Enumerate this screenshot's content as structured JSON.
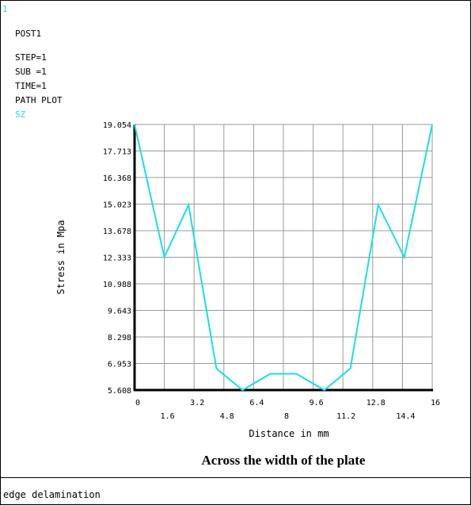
{
  "window_number": "1",
  "header": {
    "program": "POST1",
    "step": "STEP=1",
    "sub": "SUB =1",
    "time": "TIME=1",
    "plot_type": "PATH PLOT",
    "item": "SZ"
  },
  "caption": "Across the width of the plate",
  "footer_text": "edge delamination",
  "colors": {
    "curve": "#18e0e4",
    "grid": "#9a9a9a",
    "axis": "#000000",
    "text": "#000000"
  },
  "chart_data": {
    "type": "line",
    "xlabel": "Distance in mm",
    "ylabel": "Stress in Mpa",
    "xlim": [
      0,
      16
    ],
    "ylim": [
      5.608,
      19.054
    ],
    "x_ticks_upper": [
      "0",
      "3.2",
      "6.4",
      "9.6",
      "12.8",
      "16"
    ],
    "x_ticks_lower": [
      "1.6",
      "4.8",
      "8",
      "11.2",
      "14.4"
    ],
    "y_ticks": [
      "19.054",
      "17.713",
      "16.368",
      "15.023",
      "13.678",
      "12.333",
      "10.988",
      "9.643",
      "8.298",
      "6.953",
      "5.608"
    ],
    "grid": true,
    "series": [
      {
        "x": [
          0,
          1.6,
          2.9,
          4.4,
          5.8,
          7.3,
          8.7,
          10.2,
          11.6,
          13.1,
          14.5,
          16
        ],
        "y": [
          19.054,
          12.333,
          14.98,
          6.7,
          5.608,
          6.43,
          6.43,
          5.608,
          6.7,
          14.98,
          12.333,
          19.054
        ]
      }
    ]
  }
}
